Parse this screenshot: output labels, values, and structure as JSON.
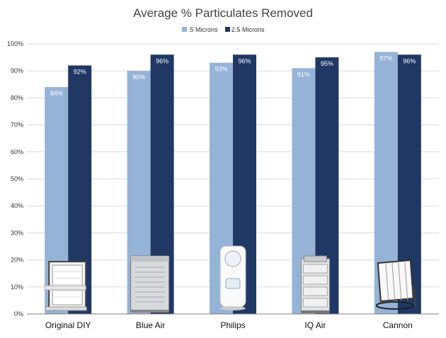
{
  "chart_data": {
    "type": "bar",
    "title": "Average % Particulates Removed",
    "categories": [
      "Original DIY",
      "Blue Air",
      "Philips",
      "IQ Air",
      "Cannon"
    ],
    "series": [
      {
        "name": ".5 Microns",
        "values": [
          84,
          90,
          93,
          91,
          97
        ],
        "labels": [
          "84%",
          "90%",
          "93%",
          "91%",
          "97%"
        ],
        "color": "#95b3d7"
      },
      {
        "name": "2.5 Microns",
        "values": [
          92,
          96,
          96,
          95,
          96
        ],
        "labels": [
          "92%",
          "96%",
          "96%",
          "95%",
          "96%"
        ],
        "color": "#1f3864"
      }
    ],
    "ylim": [
      0,
      100
    ],
    "yticks": [
      "0%",
      "10%",
      "20%",
      "30%",
      "40%",
      "50%",
      "60%",
      "70%",
      "80%",
      "90%",
      "100%"
    ],
    "ytick_values": [
      0,
      10,
      20,
      30,
      40,
      50,
      60,
      70,
      80,
      90,
      100
    ],
    "legend": "top-center",
    "grid": true,
    "product_icons": [
      "box-fan-filter-icon",
      "blueair-purifier-icon",
      "philips-purifier-icon",
      "iqair-purifier-icon",
      "cannon-fan-filter-icon"
    ]
  }
}
